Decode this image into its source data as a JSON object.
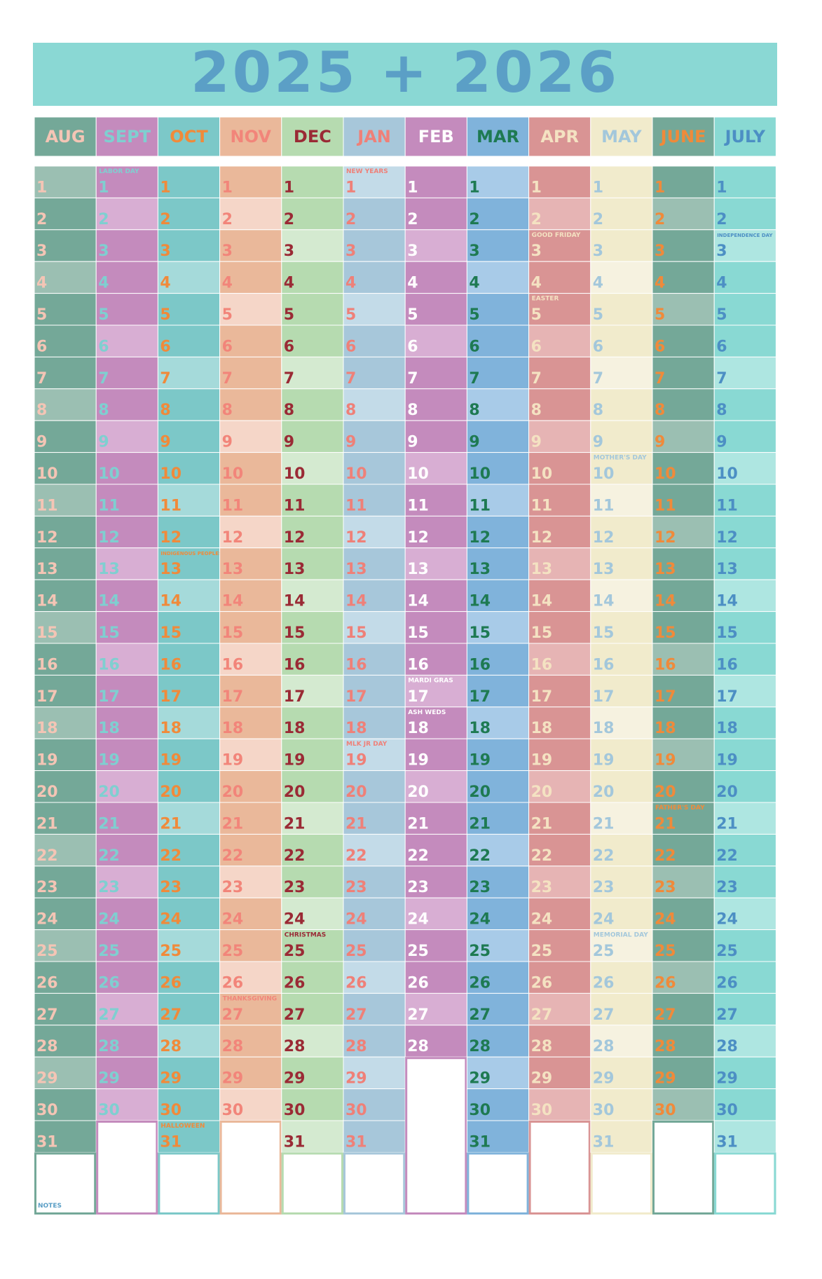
{
  "title": "2025 + 2026",
  "days": [
    1,
    2,
    3,
    4,
    5,
    6,
    7,
    8,
    9,
    10,
    11,
    12,
    13,
    14,
    15,
    16,
    17,
    18,
    19,
    20,
    21,
    22,
    23,
    24,
    25,
    26,
    27,
    28,
    29,
    30,
    31
  ],
  "notes": "NOTES",
  "months": [
    {
      "name": "AUG",
      "length": 31,
      "color": "#74a898",
      "light": "#9bbfb2",
      "text": "#f4c5b5",
      "holidays": []
    },
    {
      "name": "SEPT",
      "length": 30,
      "color": "#c48bbd",
      "light": "#d8aed3",
      "text": "#7fcfd0",
      "holidays": [
        {
          "day": 1,
          "label": "LABOR DAY"
        }
      ]
    },
    {
      "name": "OCT",
      "length": 31,
      "color": "#7cc8c8",
      "light": "#a5dada",
      "text": "#f08a3a",
      "holidays": [
        {
          "day": 13,
          "label": "INDIGENOUS PEOPLES DAY"
        },
        {
          "day": 31,
          "label": "HALLOWEEN"
        }
      ]
    },
    {
      "name": "NOV",
      "length": 30,
      "color": "#eab89a",
      "light": "#f5d6c8",
      "text": "#f2857a",
      "holidays": [
        {
          "day": 27,
          "label": "THANKSGIVING"
        }
      ]
    },
    {
      "name": "DEC",
      "length": 31,
      "color": "#b6dbb0",
      "light": "#d4ead0",
      "text": "#9a2a35",
      "holidays": [
        {
          "day": 25,
          "label": "CHRISTMAS"
        }
      ]
    },
    {
      "name": "JAN",
      "length": 31,
      "color": "#a7c7da",
      "light": "#c3dbe8",
      "text": "#ef8078",
      "holidays": [
        {
          "day": 1,
          "label": "NEW YEARS"
        },
        {
          "day": 19,
          "label": "MLK JR DAY"
        }
      ]
    },
    {
      "name": "FEB",
      "length": 28,
      "color": "#c48bbd",
      "light": "#d8aed3",
      "text": "#ffffff",
      "holidays": [
        {
          "day": 17,
          "label": "MARDI GRAS"
        },
        {
          "day": 18,
          "label": "ASH WEDS"
        }
      ]
    },
    {
      "name": "MAR",
      "length": 31,
      "color": "#80b3db",
      "light": "#a8cbe8",
      "text": "#1e7a52",
      "holidays": []
    },
    {
      "name": "APR",
      "length": 30,
      "color": "#d99494",
      "light": "#e6b4b4",
      "text": "#f4e2c2",
      "holidays": [
        {
          "day": 3,
          "label": "GOOD FRIDAY"
        },
        {
          "day": 5,
          "label": "EASTER"
        }
      ]
    },
    {
      "name": "MAY",
      "length": 31,
      "color": "#f1ebcc",
      "light": "#f6f2e0",
      "text": "#a3c7db",
      "holidays": [
        {
          "day": 10,
          "label": "MOTHER'S DAY"
        },
        {
          "day": 25,
          "label": "MEMORIAL DAY"
        }
      ]
    },
    {
      "name": "JUNE",
      "length": 30,
      "color": "#74a898",
      "light": "#9bbfb2",
      "text": "#f08a3a",
      "holidays": [
        {
          "day": 21,
          "label": "FATHER'S DAY"
        }
      ]
    },
    {
      "name": "JULY",
      "length": 31,
      "color": "#89d9d3",
      "light": "#aee6e1",
      "text": "#4c8fc4",
      "holidays": [
        {
          "day": 3,
          "label": "INDEPENDENCE DAY"
        }
      ]
    }
  ]
}
